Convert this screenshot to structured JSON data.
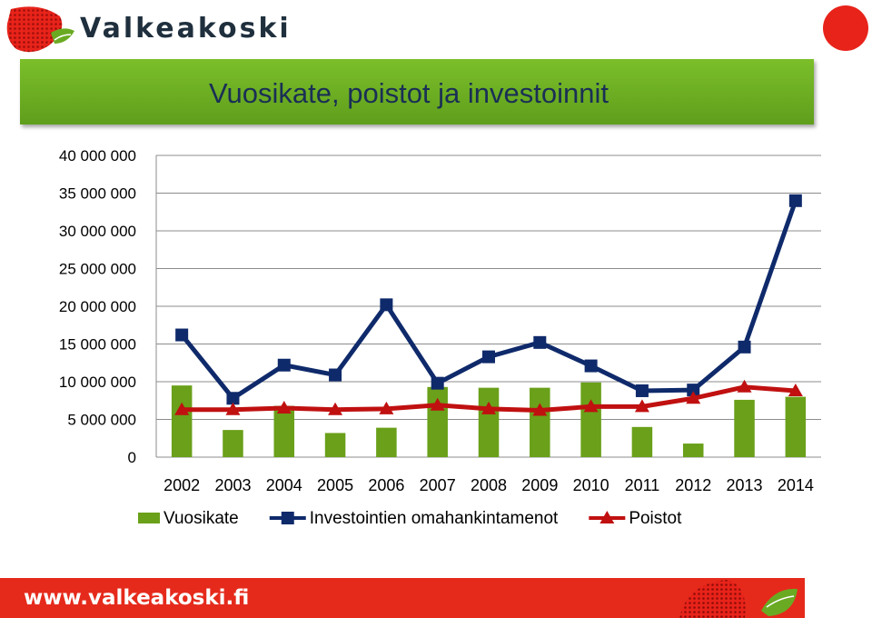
{
  "header": {
    "brand_name": "Valkeakoski",
    "logo_icon": "strawberry-leaf-logo-icon",
    "accent_red": "#e8231a",
    "accent_green": "#6aaa22"
  },
  "footer": {
    "url_text": "www.valkeakoski.fi"
  },
  "chart_data": {
    "type": "bar",
    "title": "Vuosikate, poistot ja investoinnit",
    "xlabel": "",
    "ylabel": "",
    "categories": [
      "2002",
      "2003",
      "2004",
      "2005",
      "2006",
      "2007",
      "2008",
      "2009",
      "2010",
      "2011",
      "2012",
      "2013",
      "2014"
    ],
    "yticks": [
      {
        "value": 0,
        "label": "0"
      },
      {
        "value": 5000000,
        "label": "5 000 000"
      },
      {
        "value": 10000000,
        "label": "10 000 000"
      },
      {
        "value": 15000000,
        "label": "15 000 000"
      },
      {
        "value": 20000000,
        "label": "20 000 000"
      },
      {
        "value": 25000000,
        "label": "25 000 000"
      },
      {
        "value": 30000000,
        "label": "30 000 000"
      },
      {
        "value": 35000000,
        "label": "35 000 000"
      },
      {
        "value": 40000000,
        "label": "40 000 000"
      }
    ],
    "ylim": [
      0,
      40000000
    ],
    "grid": true,
    "legend_position": "bottom",
    "series": [
      {
        "name": "Vuosikate",
        "kind": "bar",
        "color": "#6aa01a",
        "values": [
          9500000,
          3600000,
          6800000,
          3200000,
          3900000,
          9300000,
          9200000,
          9200000,
          9900000,
          4000000,
          1800000,
          7600000,
          8000000
        ]
      },
      {
        "name": "Investointien omahankintamenot",
        "kind": "line",
        "marker": "square",
        "color": "#0f2a6b",
        "values": [
          16200000,
          7800000,
          12200000,
          10900000,
          20200000,
          9800000,
          13300000,
          15200000,
          12100000,
          8800000,
          8900000,
          14600000,
          34000000
        ]
      },
      {
        "name": "Poistot",
        "kind": "line",
        "marker": "triangle",
        "color": "#c01010",
        "values": [
          6300000,
          6300000,
          6500000,
          6300000,
          6400000,
          6900000,
          6400000,
          6200000,
          6700000,
          6700000,
          7800000,
          9300000,
          8800000
        ]
      }
    ]
  }
}
